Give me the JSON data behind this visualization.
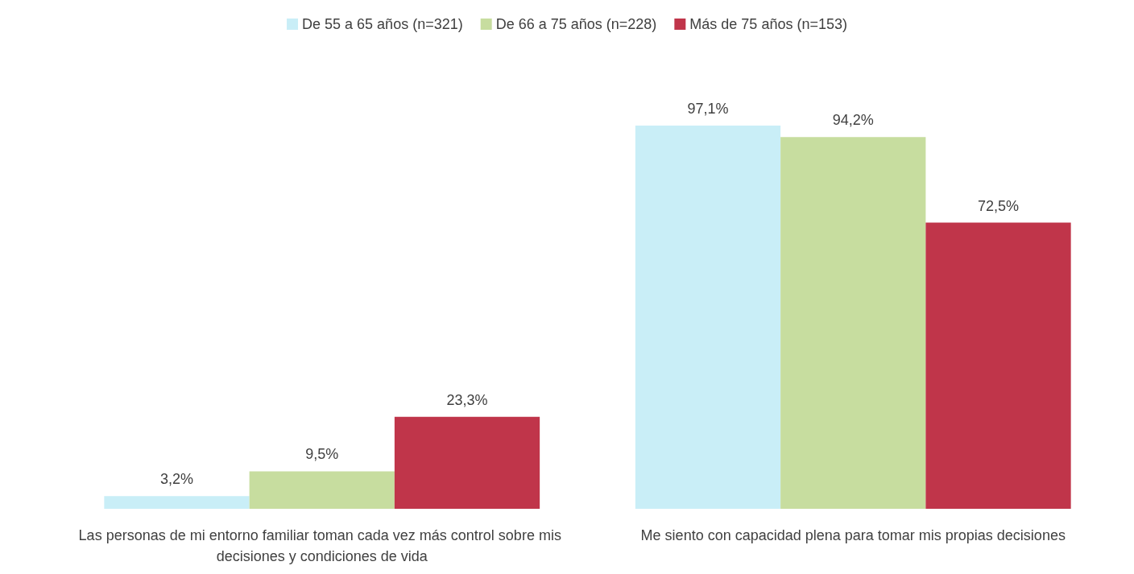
{
  "chart_data": {
    "type": "bar",
    "categories": [
      "Las personas de mi entorno familiar toman cada vez más control sobre mis decisiones y condiciones de vida",
      "Me siento con capacidad plena para tomar mis propias decisiones"
    ],
    "series": [
      {
        "name": "De 55 a 65 años (n=321)",
        "color": "#c9eef7",
        "values": [
          3.2,
          97.1
        ],
        "value_labels": [
          "3,2%",
          "97,1%"
        ]
      },
      {
        "name": "De 66 a 75 años (n=228)",
        "color": "#c7dd9f",
        "values": [
          9.5,
          94.2
        ],
        "value_labels": [
          "9,5%",
          "94,2%"
        ]
      },
      {
        "name": "Más de 75 años (n=153)",
        "color": "#c0354a",
        "values": [
          23.3,
          72.5
        ],
        "value_labels": [
          "23,3%",
          "72,5%"
        ]
      }
    ],
    "legend": "top"
  }
}
